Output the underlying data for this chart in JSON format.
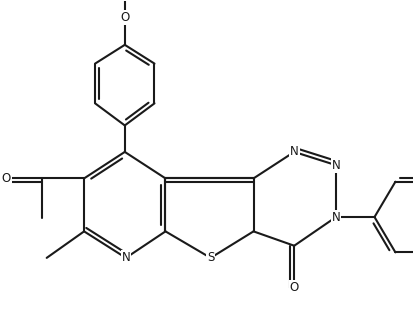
{
  "background_color": "#ffffff",
  "line_color": "#1a1a1a",
  "line_width": 1.5,
  "figsize": [
    4.19,
    3.27
  ],
  "dpi": 100,
  "xlim": [
    0,
    10
  ],
  "ylim": [
    0,
    8
  ]
}
